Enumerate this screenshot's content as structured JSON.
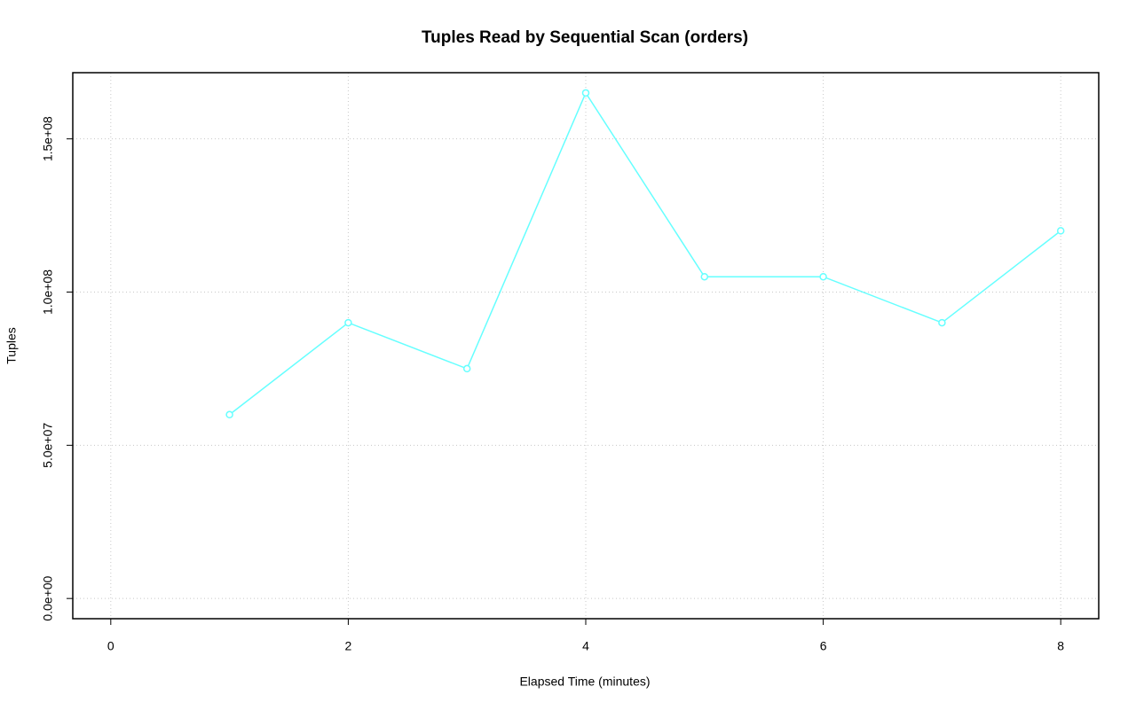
{
  "chart_data": {
    "type": "line",
    "title": "Tuples Read by Sequential Scan (orders)",
    "x_label": "Elapsed Time (minutes)",
    "y_label": "Tuples",
    "x": [
      1,
      2,
      3,
      4,
      5,
      6,
      7,
      8
    ],
    "series": [
      {
        "name": "orders",
        "color": "#66ffff",
        "values": [
          60000000,
          90000000,
          75000000,
          165000000,
          105000000,
          105000000,
          90000000,
          120000000
        ]
      }
    ],
    "xlim": [
      -0.32,
      8.32
    ],
    "xticks": [
      0,
      2,
      4,
      6,
      8
    ],
    "ylim": [
      -6600000,
      171600000
    ],
    "yticks": [
      {
        "value": 0,
        "label": "0.0e+00"
      },
      {
        "value": 50000000,
        "label": "5.0e+07"
      },
      {
        "value": 100000000,
        "label": "1.0e+08"
      },
      {
        "value": 150000000,
        "label": "1.5e+08"
      }
    ],
    "grid": true
  }
}
